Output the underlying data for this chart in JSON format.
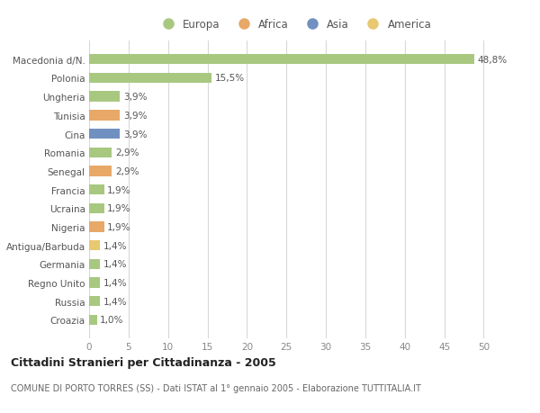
{
  "categories": [
    "Croazia",
    "Russia",
    "Regno Unito",
    "Germania",
    "Antigua/Barbuda",
    "Nigeria",
    "Ucraina",
    "Francia",
    "Senegal",
    "Romania",
    "Cina",
    "Tunisia",
    "Ungheria",
    "Polonia",
    "Macedonia d/N."
  ],
  "values": [
    1.0,
    1.4,
    1.4,
    1.4,
    1.4,
    1.9,
    1.9,
    1.9,
    2.9,
    2.9,
    3.9,
    3.9,
    3.9,
    15.5,
    48.8
  ],
  "labels": [
    "1,0%",
    "1,4%",
    "1,4%",
    "1,4%",
    "1,4%",
    "1,9%",
    "1,9%",
    "1,9%",
    "2,9%",
    "2,9%",
    "3,9%",
    "3,9%",
    "3,9%",
    "15,5%",
    "48,8%"
  ],
  "colors": [
    "#a8c880",
    "#a8c880",
    "#a8c880",
    "#a8c880",
    "#e8c870",
    "#e8a868",
    "#a8c880",
    "#a8c880",
    "#e8a868",
    "#a8c880",
    "#7090c0",
    "#e8a868",
    "#a8c880",
    "#a8c880",
    "#a8c880"
  ],
  "legend_labels": [
    "Europa",
    "Africa",
    "Asia",
    "America"
  ],
  "legend_colors": [
    "#a8c880",
    "#e8a868",
    "#7090c0",
    "#e8c870"
  ],
  "title": "Cittadini Stranieri per Cittadinanza - 2005",
  "subtitle": "COMUNE DI PORTO TORRES (SS) - Dati ISTAT al 1° gennaio 2005 - Elaborazione TUTTITALIA.IT",
  "xlim": [
    0,
    52
  ],
  "xticks": [
    0,
    5,
    10,
    15,
    20,
    25,
    30,
    35,
    40,
    45,
    50
  ],
  "bg_color": "#ffffff",
  "grid_color": "#d8d8d8",
  "bar_height": 0.55
}
